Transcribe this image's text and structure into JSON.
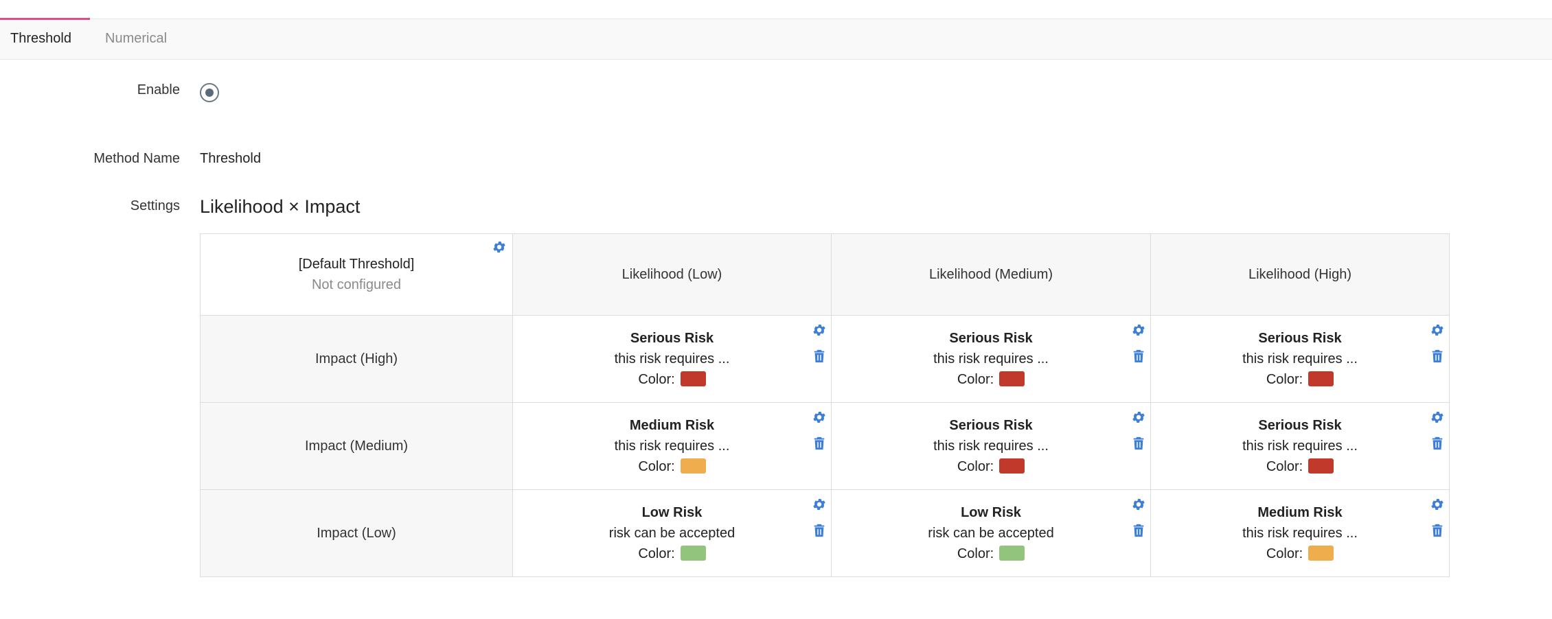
{
  "tabs": [
    {
      "label": "Threshold",
      "active": true
    },
    {
      "label": "Numerical",
      "active": false
    }
  ],
  "form": {
    "enable_label": "Enable",
    "enable_checked": true,
    "method_name_label": "Method Name",
    "method_name_value": "Threshold",
    "settings_label": "Settings",
    "settings_title": "Likelihood × Impact"
  },
  "matrix": {
    "default_threshold": {
      "title": "[Default Threshold]",
      "status": "Not configured"
    },
    "columns": [
      "Likelihood (Low)",
      "Likelihood (Medium)",
      "Likelihood (High)"
    ],
    "rows": [
      {
        "label": "Impact (High)",
        "cells": [
          {
            "name": "Serious Risk",
            "desc": "this risk requires ...",
            "color_label": "Color:",
            "color": "#c0392b"
          },
          {
            "name": "Serious Risk",
            "desc": "this risk requires ...",
            "color_label": "Color:",
            "color": "#c0392b"
          },
          {
            "name": "Serious Risk",
            "desc": "this risk requires ...",
            "color_label": "Color:",
            "color": "#c0392b"
          }
        ]
      },
      {
        "label": "Impact (Medium)",
        "cells": [
          {
            "name": "Medium Risk",
            "desc": "this risk requires ...",
            "color_label": "Color:",
            "color": "#f0ad4e"
          },
          {
            "name": "Serious Risk",
            "desc": "this risk requires ...",
            "color_label": "Color:",
            "color": "#c0392b"
          },
          {
            "name": "Serious Risk",
            "desc": "this risk requires ...",
            "color_label": "Color:",
            "color": "#c0392b"
          }
        ]
      },
      {
        "label": "Impact (Low)",
        "cells": [
          {
            "name": "Low Risk",
            "desc": "risk can be accepted",
            "color_label": "Color:",
            "color": "#93c47d"
          },
          {
            "name": "Low Risk",
            "desc": "risk can be accepted",
            "color_label": "Color:",
            "color": "#93c47d"
          },
          {
            "name": "Medium Risk",
            "desc": "this risk requires ...",
            "color_label": "Color:",
            "color": "#f0ad4e"
          }
        ]
      }
    ]
  },
  "colors": {
    "accent": "#d94f8a",
    "icon": "#3d7fd6"
  },
  "icons": {
    "settings": "gear-icon",
    "delete": "trash-icon"
  }
}
